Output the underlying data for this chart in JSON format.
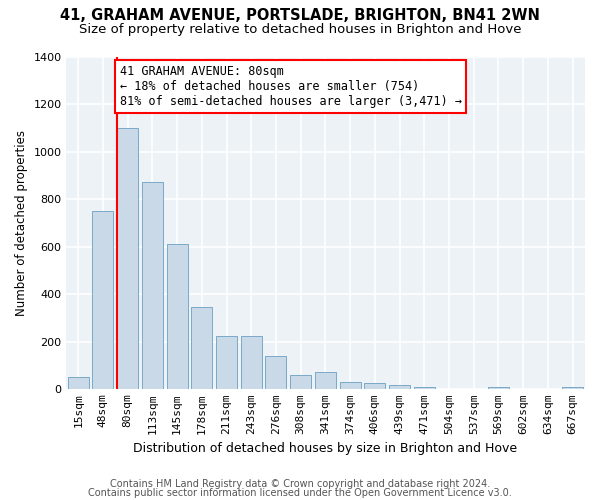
{
  "title1": "41, GRAHAM AVENUE, PORTSLADE, BRIGHTON, BN41 2WN",
  "title2": "Size of property relative to detached houses in Brighton and Hove",
  "xlabel": "Distribution of detached houses by size in Brighton and Hove",
  "ylabel": "Number of detached properties",
  "footer1": "Contains HM Land Registry data © Crown copyright and database right 2024.",
  "footer2": "Contains public sector information licensed under the Open Government Licence v3.0.",
  "bins": [
    "15sqm",
    "48sqm",
    "80sqm",
    "113sqm",
    "145sqm",
    "178sqm",
    "211sqm",
    "243sqm",
    "276sqm",
    "308sqm",
    "341sqm",
    "374sqm",
    "406sqm",
    "439sqm",
    "471sqm",
    "504sqm",
    "537sqm",
    "569sqm",
    "602sqm",
    "634sqm",
    "667sqm"
  ],
  "values": [
    50,
    750,
    1100,
    870,
    610,
    345,
    225,
    225,
    140,
    60,
    70,
    30,
    25,
    15,
    10,
    0,
    0,
    10,
    0,
    0,
    10
  ],
  "bar_color": "#c9d9e8",
  "bar_edge_color": "#7aaac8",
  "red_line_index": 2,
  "annotation_line1": "41 GRAHAM AVENUE: 80sqm",
  "annotation_line2": "← 18% of detached houses are smaller (754)",
  "annotation_line3": "81% of semi-detached houses are larger (3,471) →",
  "annotation_box_color": "white",
  "annotation_box_edge": "red",
  "ylim": [
    0,
    1400
  ],
  "yticks": [
    0,
    200,
    400,
    600,
    800,
    1000,
    1200,
    1400
  ],
  "bg_color": "#edf2f7",
  "grid_color": "#ffffff",
  "title1_fontsize": 10.5,
  "title2_fontsize": 9.5,
  "xlabel_fontsize": 9,
  "ylabel_fontsize": 8.5,
  "tick_fontsize": 8,
  "footer_fontsize": 7,
  "annotation_fontsize": 8.5
}
